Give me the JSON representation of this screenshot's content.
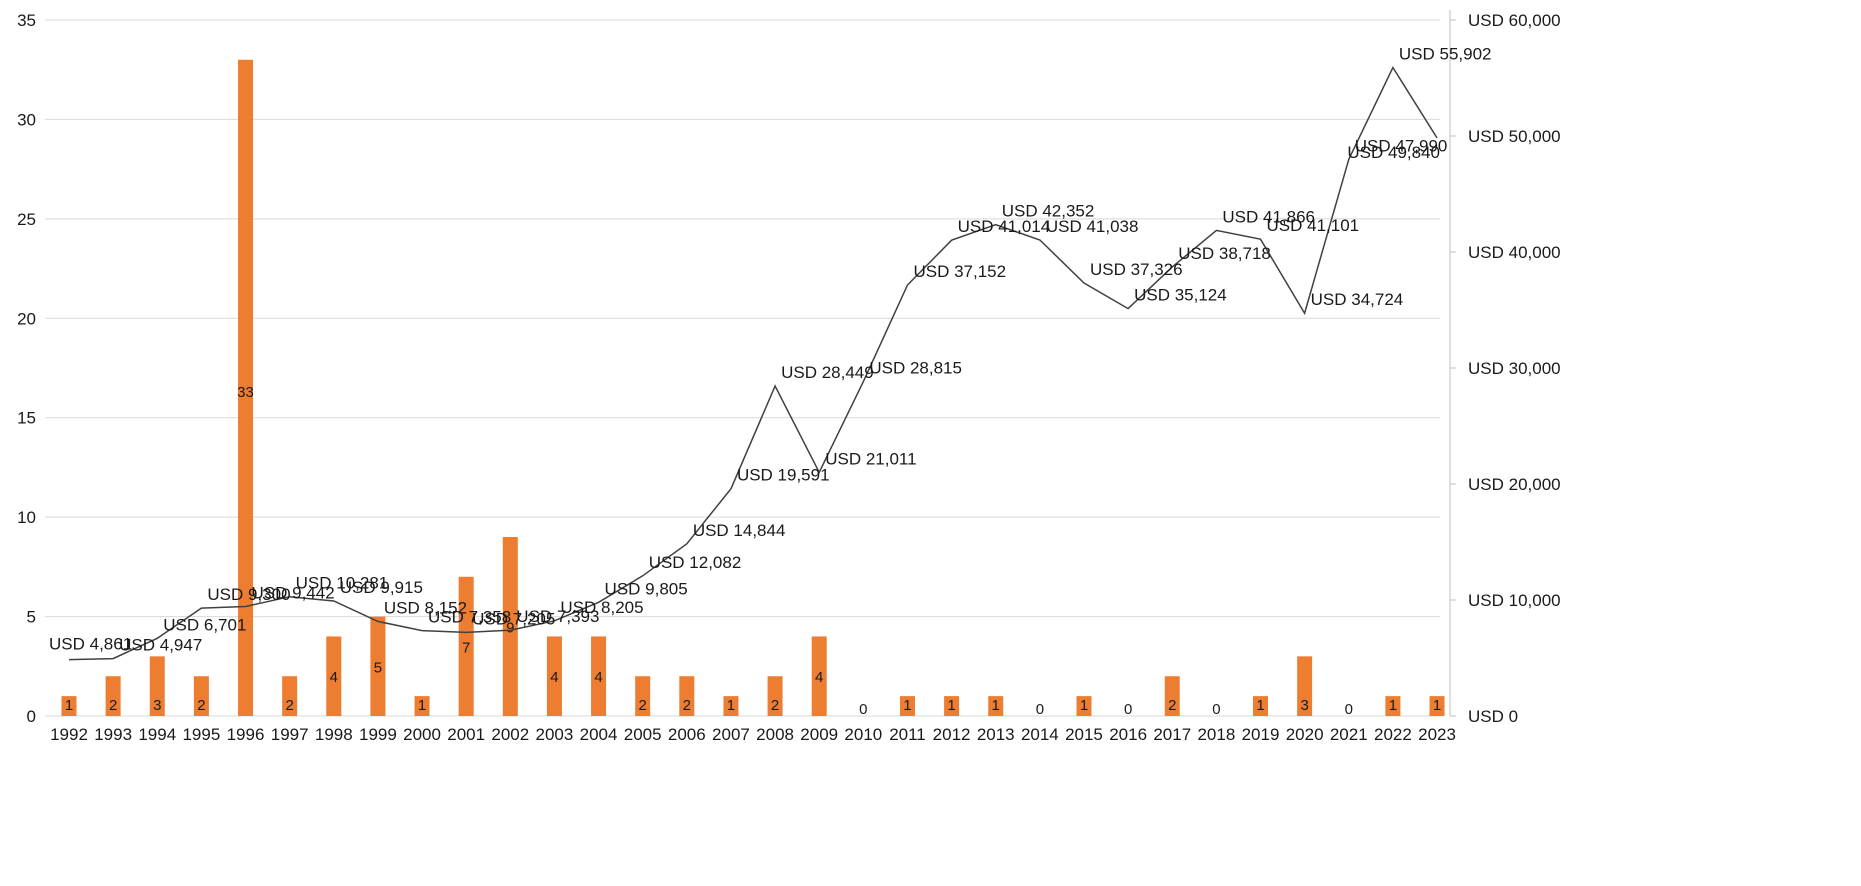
{
  "chart_data": {
    "type": "bar",
    "title": "",
    "xlabel": "",
    "categories": [
      "1992",
      "1993",
      "1994",
      "1995",
      "1996",
      "1997",
      "1998",
      "1999",
      "2000",
      "2001",
      "2002",
      "2003",
      "2004",
      "2005",
      "2006",
      "2007",
      "2008",
      "2009",
      "2010",
      "2011",
      "2012",
      "2013",
      "2014",
      "2015",
      "2016",
      "2017",
      "2018",
      "2019",
      "2020",
      "2021",
      "2022",
      "2023"
    ],
    "series": [
      {
        "type": "bar",
        "axis": "left",
        "color": "#ed7d31",
        "values": [
          1,
          2,
          3,
          2,
          33,
          2,
          4,
          5,
          1,
          7,
          9,
          4,
          4,
          2,
          2,
          1,
          2,
          4,
          0,
          1,
          1,
          1,
          0,
          1,
          0,
          2,
          0,
          1,
          3,
          0,
          1,
          1
        ],
        "labels": [
          "1",
          "2",
          "3",
          "2",
          "33",
          "2",
          "4",
          "5",
          "1",
          "7",
          "9",
          "4",
          "4",
          "2",
          "2",
          "1",
          "2",
          "4",
          "0",
          "1",
          "1",
          "1",
          "0",
          "1",
          "0",
          "2",
          "0",
          "1",
          "3",
          "0",
          "1",
          "1"
        ]
      },
      {
        "type": "line",
        "axis": "right",
        "color": "#404040",
        "values": [
          4861,
          4947,
          6701,
          9300,
          9442,
          10281,
          9915,
          8152,
          7358,
          7205,
          7393,
          8205,
          9805,
          12082,
          14844,
          19591,
          28449,
          21011,
          28815,
          37152,
          41014,
          42352,
          41038,
          37326,
          35124,
          38718,
          41866,
          41101,
          34724,
          47990,
          55902,
          49840
        ],
        "labels": [
          "USD 4,861",
          "USD 4,947",
          "USD 6,701",
          "USD 9,300",
          "USD 9,442",
          "USD 10,281",
          "USD 9,915",
          "USD 8,152",
          "USD 7,358",
          "USD 7,205",
          "USD 7,393",
          "USD 8,205",
          "USD 9,805",
          "USD 12,082",
          "USD 14,844",
          "USD 19,591",
          "USD 28,449",
          "USD 21,011",
          "USD 28,815",
          "USD 37,152",
          "USD 41,014",
          "USD 42,352",
          "USD 41,038",
          "USD 37,326",
          "USD 35,124",
          "USD 38,718",
          "USD 41,866",
          "USD 41,101",
          "USD 34,724",
          "USD 47,990",
          "USD 55,902",
          "USD 49,840"
        ]
      }
    ],
    "y_left": {
      "range": [
        0,
        35
      ],
      "ticks": [
        "0",
        "5",
        "10",
        "15",
        "20",
        "25",
        "30",
        "35"
      ]
    },
    "y_right": {
      "range": [
        0,
        60000
      ],
      "ticks": [
        "USD 0",
        "USD 10,000",
        "USD 20,000",
        "USD 30,000",
        "USD 40,000",
        "USD 50,000",
        "USD 60,000"
      ]
    },
    "grid": true,
    "legend": "none"
  }
}
